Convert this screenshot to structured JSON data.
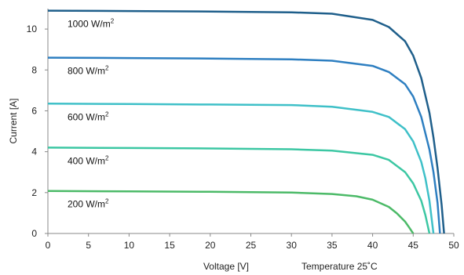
{
  "chart_data": {
    "type": "line",
    "xlabel": "Voltage [V]",
    "ylabel": "Current [A]",
    "annotation": "Temperature 25˚C",
    "xlim": [
      0,
      50
    ],
    "ylim": [
      0,
      11
    ],
    "x_ticks": [
      0,
      5,
      10,
      15,
      20,
      25,
      30,
      35,
      40,
      45,
      50
    ],
    "y_ticks": [
      0,
      2,
      4,
      6,
      8,
      10
    ],
    "grid": false,
    "series": [
      {
        "name": "1000 W/m²",
        "label_text": "1000 W/m",
        "label_sup": "2",
        "color": "#1f5f8b",
        "x": [
          0,
          10,
          20,
          30,
          35,
          40,
          42,
          44,
          45,
          46,
          47,
          47.5,
          48,
          48.5,
          48.8
        ],
        "y": [
          10.9,
          10.88,
          10.86,
          10.82,
          10.75,
          10.45,
          10.1,
          9.4,
          8.7,
          7.6,
          5.9,
          4.7,
          3.2,
          1.4,
          0
        ]
      },
      {
        "name": "800 W/m²",
        "label_text": "800 W/m",
        "label_sup": "2",
        "color": "#2e7fc1",
        "x": [
          0,
          10,
          20,
          30,
          35,
          40,
          42,
          44,
          45,
          46,
          47,
          47.5,
          48,
          48.3
        ],
        "y": [
          8.6,
          8.58,
          8.56,
          8.52,
          8.45,
          8.2,
          7.9,
          7.3,
          6.7,
          5.7,
          4.1,
          3.0,
          1.5,
          0
        ]
      },
      {
        "name": "600 W/m²",
        "label_text": "600 W/m",
        "label_sup": "2",
        "color": "#3fc0c8",
        "x": [
          0,
          10,
          20,
          30,
          35,
          40,
          42,
          44,
          45,
          46,
          46.5,
          47,
          47.5
        ],
        "y": [
          6.35,
          6.33,
          6.31,
          6.28,
          6.2,
          5.95,
          5.7,
          5.1,
          4.5,
          3.5,
          2.7,
          1.6,
          0
        ]
      },
      {
        "name": "400 W/m²",
        "label_text": "400 W/m",
        "label_sup": "2",
        "color": "#3cc7a3",
        "x": [
          0,
          10,
          20,
          30,
          35,
          40,
          42,
          44,
          45,
          46,
          46.5,
          47
        ],
        "y": [
          4.2,
          4.18,
          4.16,
          4.12,
          4.05,
          3.85,
          3.6,
          3.0,
          2.45,
          1.6,
          0.9,
          0
        ]
      },
      {
        "name": "200 W/m²",
        "label_text": "200 W/m",
        "label_sup": "2",
        "color": "#4cba68",
        "x": [
          0,
          10,
          20,
          30,
          35,
          38,
          40,
          42,
          43,
          44,
          44.5,
          45
        ],
        "y": [
          2.08,
          2.06,
          2.04,
          2.0,
          1.93,
          1.82,
          1.65,
          1.3,
          0.98,
          0.58,
          0.3,
          0
        ]
      }
    ]
  }
}
